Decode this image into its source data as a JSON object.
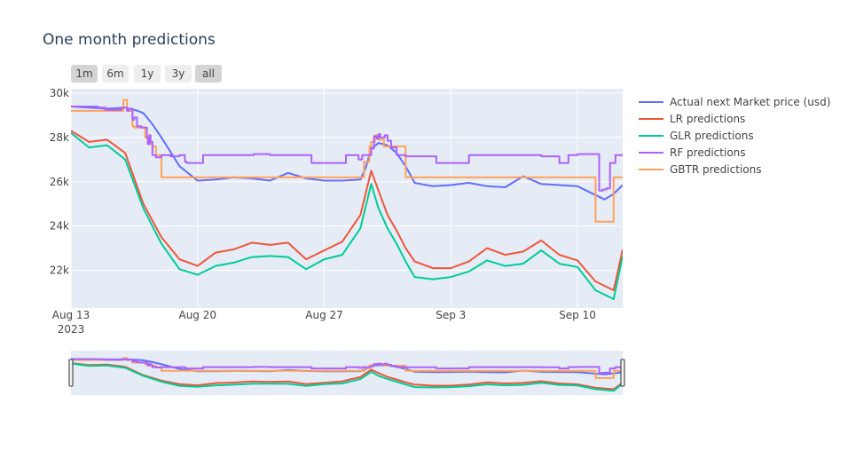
{
  "chart_data": {
    "type": "line",
    "title": "One month predictions",
    "range_selector": [
      "1m",
      "6m",
      "1y",
      "3y",
      "all"
    ],
    "range_selector_active": "all",
    "x_tick_labels": [
      "Aug 13\n2023",
      "Aug 20",
      "Aug 27",
      "Sep 3",
      "Sep 10"
    ],
    "x_ticks": [
      0,
      7,
      14,
      21,
      28
    ],
    "xlim": [
      0,
      30.5
    ],
    "ylim": [
      20300,
      30200
    ],
    "y_ticks": [
      22000,
      24000,
      26000,
      28000,
      30000
    ],
    "y_tick_labels": [
      "22k",
      "24k",
      "26k",
      "28k",
      "30k"
    ],
    "legend_position": "right",
    "rangeslider": true,
    "series": [
      {
        "name": "Actual next Market price (usd)",
        "color": "#636efa",
        "step": false,
        "x": [
          0,
          1,
          2,
          3,
          3.7,
          4,
          4.5,
          5,
          6,
          7,
          8,
          9,
          10,
          11,
          12,
          13,
          14,
          15,
          16,
          16.3,
          16.6,
          17,
          17.5,
          18,
          18.5,
          19,
          20,
          21,
          22,
          23,
          24,
          25,
          26,
          27,
          28,
          29,
          29.5,
          30,
          30.5
        ],
        "y": [
          29400,
          29350,
          29300,
          29350,
          29200,
          29100,
          28600,
          28000,
          26700,
          26050,
          26100,
          26200,
          26150,
          26050,
          26400,
          26150,
          26050,
          26050,
          26100,
          26650,
          27500,
          27750,
          27650,
          27300,
          26700,
          25950,
          25800,
          25850,
          25950,
          25800,
          25750,
          26250,
          25900,
          25850,
          25800,
          25400,
          25200,
          25450,
          25850
        ]
      },
      {
        "name": "LR predictions",
        "color": "#ef553b",
        "step": false,
        "x": [
          0,
          1,
          2,
          3,
          4,
          5,
          6,
          7,
          8,
          9,
          10,
          11,
          12,
          13,
          14,
          15,
          16,
          16.3,
          16.6,
          17,
          17.5,
          18,
          18.5,
          19,
          20,
          21,
          22,
          23,
          24,
          25,
          26,
          27,
          28,
          29,
          30,
          30.5
        ],
        "y": [
          28300,
          27800,
          27900,
          27300,
          25000,
          23500,
          22500,
          22200,
          22800,
          22950,
          23250,
          23150,
          23250,
          22500,
          22900,
          23300,
          24500,
          25500,
          26500,
          25600,
          24500,
          23800,
          23000,
          22400,
          22100,
          22100,
          22400,
          23000,
          22700,
          22850,
          23350,
          22700,
          22450,
          21500,
          21100,
          22950
        ]
      },
      {
        "name": "GLR predictions",
        "color": "#00cc96",
        "step": false,
        "x": [
          0,
          1,
          2,
          3,
          4,
          5,
          6,
          7,
          8,
          9,
          10,
          11,
          12,
          13,
          14,
          15,
          16,
          16.3,
          16.6,
          17,
          17.5,
          18,
          18.5,
          19,
          20,
          21,
          22,
          23,
          24,
          25,
          26,
          27,
          28,
          29,
          30,
          30.5
        ],
        "y": [
          28200,
          27550,
          27650,
          27000,
          24800,
          23200,
          22050,
          21800,
          22200,
          22350,
          22600,
          22650,
          22600,
          22050,
          22500,
          22700,
          23900,
          24900,
          25900,
          24800,
          23900,
          23200,
          22400,
          21700,
          21600,
          21700,
          21950,
          22450,
          22200,
          22300,
          22900,
          22300,
          22150,
          21100,
          20700,
          22650
        ]
      },
      {
        "name": "RF predictions",
        "color": "#ab63fa",
        "step": true,
        "x": [
          0,
          1.5,
          1.9,
          2.8,
          3.1,
          3.2,
          3.4,
          3.5,
          3.65,
          3.9,
          4,
          4.1,
          4.2,
          4.25,
          4.35,
          4.4,
          4.5,
          4.7,
          5,
          5.5,
          6,
          6.3,
          6.4,
          7,
          7.3,
          8.2,
          8.3,
          10,
          10.1,
          11,
          11.1,
          13.3,
          13.4,
          14.3,
          15.2,
          15.9,
          16.1,
          16.3,
          16.6,
          16.75,
          16.9,
          17.0,
          17.1,
          17.35,
          17.5,
          17.7,
          18,
          18.5,
          20,
          20.2,
          21,
          22,
          25,
          25.5,
          26,
          26.5,
          27,
          27.5,
          28,
          29,
          29.2,
          29.4,
          29.6,
          29.8,
          30.1,
          30.3,
          30.5
        ],
        "y": [
          29400,
          29350,
          29250,
          29350,
          29200,
          29300,
          28800,
          28900,
          28500,
          28450,
          28450,
          28450,
          28000,
          27700,
          28100,
          27800,
          27200,
          27100,
          27200,
          27150,
          27200,
          26900,
          26850,
          26850,
          27200,
          27200,
          27200,
          27200,
          27250,
          27200,
          27200,
          26850,
          26850,
          26850,
          27200,
          27000,
          27200,
          27200,
          27500,
          28050,
          27950,
          28150,
          28000,
          28100,
          27850,
          27550,
          27200,
          27150,
          27150,
          26850,
          26850,
          27200,
          27200,
          27200,
          27150,
          27150,
          26850,
          27200,
          27250,
          27250,
          25600,
          25650,
          25700,
          26850,
          27200,
          27200,
          27200
        ]
      },
      {
        "name": "GBTR predictions",
        "color": "#ffa15a",
        "step": true,
        "x": [
          0,
          1.5,
          1.9,
          2.9,
          3.1,
          3.3,
          3.4,
          3.5,
          3.7,
          4,
          4.1,
          4.2,
          4.25,
          4.3,
          4.4,
          4.5,
          4.7,
          5,
          6,
          8,
          10,
          12,
          14,
          16.1,
          16.2,
          16.5,
          16.6,
          16.8,
          17,
          17.1,
          17.3,
          18.5,
          20,
          22,
          25,
          28,
          29,
          29.5,
          30,
          30.5
        ],
        "y": [
          29200,
          29200,
          29200,
          29700,
          29200,
          29200,
          28500,
          28450,
          28450,
          28450,
          28000,
          28000,
          27700,
          28100,
          27700,
          27600,
          27200,
          26200,
          26200,
          26200,
          26200,
          26200,
          26200,
          26200,
          26900,
          27600,
          27800,
          28100,
          27900,
          27900,
          27600,
          26200,
          26200,
          26200,
          26200,
          26200,
          24200,
          24200,
          26200,
          26200
        ]
      }
    ]
  }
}
